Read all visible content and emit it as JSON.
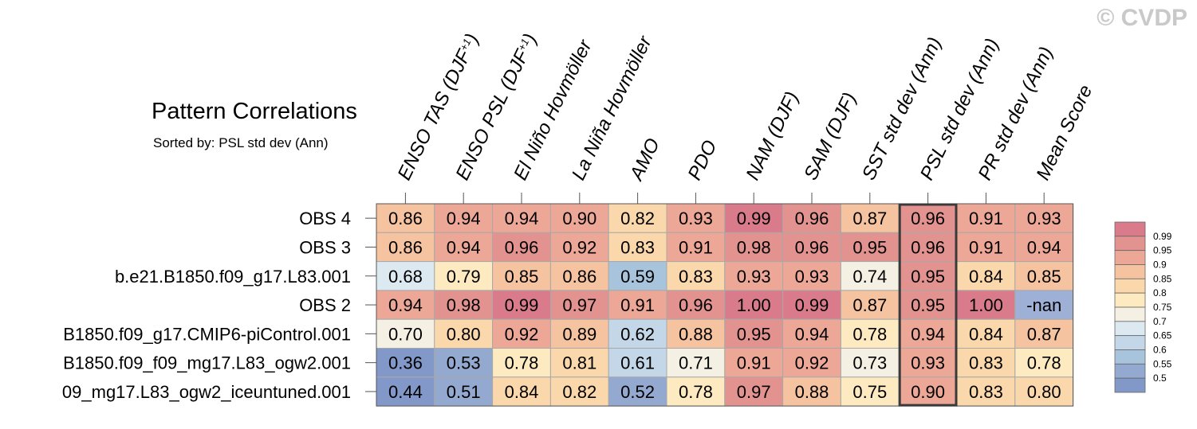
{
  "header": {
    "title": "Pattern Correlations",
    "subtitle": "Sorted by: PSL std dev (Ann)",
    "watermark": "© CVDP"
  },
  "chart_data": {
    "type": "heatmap",
    "columns": [
      {
        "base": "ENSO TAS (DJF",
        "sup": "+1",
        "close": ")"
      },
      {
        "base": "ENSO PSL (DJF",
        "sup": "+1",
        "close": ")"
      },
      {
        "base": "El Niño Hovmöller"
      },
      {
        "base": "La Niña Hovmöller"
      },
      {
        "base": "AMO"
      },
      {
        "base": "PDO"
      },
      {
        "base": "NAM (DJF)"
      },
      {
        "base": "SAM (DJF)"
      },
      {
        "base": "SST std dev (Ann)"
      },
      {
        "base": "PSL std dev (Ann)"
      },
      {
        "base": "PR std dev (Ann)"
      },
      {
        "base": "Mean Score"
      }
    ],
    "rows": [
      "OBS 4",
      "OBS 3",
      "b.e21.B1850.f09_g17.L83.001",
      "OBS 2",
      "B1850.f09_g17.CMIP6-piControl.001",
      "B1850.f09_f09_mg17.L83_ogw2.001",
      "09_mg17.L83_ogw2_iceuntuned.001"
    ],
    "values": [
      [
        "0.86",
        "0.94",
        "0.94",
        "0.90",
        "0.82",
        "0.93",
        "0.99",
        "0.96",
        "0.87",
        "0.96",
        "0.91",
        "0.93"
      ],
      [
        "0.86",
        "0.94",
        "0.96",
        "0.92",
        "0.83",
        "0.91",
        "0.98",
        "0.96",
        "0.95",
        "0.96",
        "0.91",
        "0.94"
      ],
      [
        "0.68",
        "0.79",
        "0.85",
        "0.86",
        "0.59",
        "0.83",
        "0.93",
        "0.93",
        "0.74",
        "0.95",
        "0.84",
        "0.85"
      ],
      [
        "0.94",
        "0.98",
        "0.99",
        "0.97",
        "0.91",
        "0.96",
        "1.00",
        "0.99",
        "0.87",
        "0.95",
        "1.00",
        "-nan"
      ],
      [
        "0.70",
        "0.80",
        "0.92",
        "0.89",
        "0.62",
        "0.88",
        "0.95",
        "0.94",
        "0.78",
        "0.94",
        "0.84",
        "0.87"
      ],
      [
        "0.36",
        "0.53",
        "0.78",
        "0.81",
        "0.61",
        "0.71",
        "0.91",
        "0.92",
        "0.73",
        "0.93",
        "0.83",
        "0.78"
      ],
      [
        "0.44",
        "0.51",
        "0.84",
        "0.82",
        "0.52",
        "0.78",
        "0.97",
        "0.88",
        "0.75",
        "0.90",
        "0.83",
        "0.80"
      ]
    ],
    "sorted_column_index": 9,
    "colorbar": {
      "levels": [
        "0.99",
        "0.95",
        "0.9",
        "0.85",
        "0.8",
        "0.75",
        "0.7",
        "0.65",
        "0.6",
        "0.55",
        "0.5"
      ],
      "colors": [
        "#d97b8a",
        "#e3938f",
        "#eda797",
        "#f5c3a0",
        "#fad8ab",
        "#fdeac0",
        "#f4f1e4",
        "#dce9f1",
        "#c3d7e8",
        "#a8c3dc",
        "#93a9d0",
        "#8198c8"
      ],
      "nan_color": "#9fb0d6"
    }
  }
}
